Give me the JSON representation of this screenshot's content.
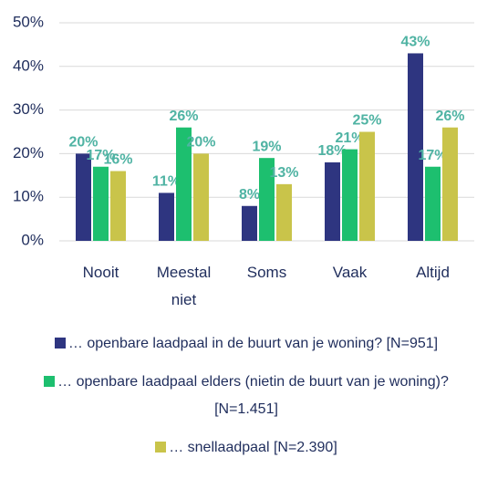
{
  "chart_data": {
    "type": "bar",
    "categories": [
      "Nooit",
      "Meestal niet",
      "Soms",
      "Vaak",
      "Altijd"
    ],
    "series": [
      {
        "name": "… openbare laadpaal in de buurt van je woning? [N=951]",
        "color": "#2e3580",
        "values": [
          20,
          11,
          8,
          18,
          43
        ],
        "value_labels": [
          "20%",
          "11%",
          "8%",
          "18%",
          "43%"
        ]
      },
      {
        "name": "… openbare laadpaal elders (nietin de buurt van je woning)? [N=1.451]",
        "color": "#1dbf6f",
        "values": [
          17,
          26,
          19,
          21,
          17
        ],
        "value_labels": [
          "17%",
          "26%",
          "19%",
          "21%",
          "17%"
        ]
      },
      {
        "name": "… snellaadpaal [N=2.390]",
        "color": "#c9c44a",
        "values": [
          16,
          20,
          13,
          25,
          26
        ],
        "value_labels": [
          "16%",
          "20%",
          "13%",
          "25%",
          "26%"
        ]
      }
    ],
    "ylim": [
      0,
      50
    ],
    "yticks": [
      {
        "value": 0,
        "label": "0%"
      },
      {
        "value": 10,
        "label": "10%"
      },
      {
        "value": 20,
        "label": "20%"
      },
      {
        "value": 30,
        "label": "30%"
      },
      {
        "value": 40,
        "label": "40%"
      },
      {
        "value": 50,
        "label": "50%"
      }
    ],
    "grid": true
  }
}
